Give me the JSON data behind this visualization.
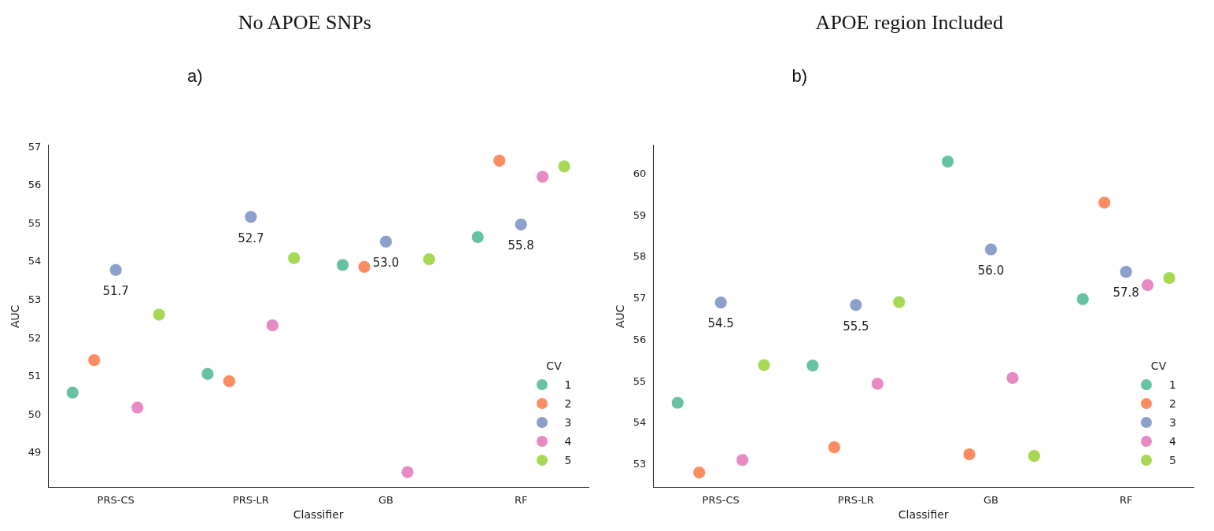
{
  "chart_data": [
    {
      "type": "scatter",
      "title": "No APOE SNPs",
      "subtitle": "a)",
      "xlabel": "Classifier",
      "ylabel": "AUC",
      "legend_title": "CV",
      "legend": "bottom right",
      "grid": false,
      "marker": "circle",
      "categories": [
        "PRS-CS",
        "PRS-LR",
        "GB",
        "RF"
      ],
      "ylim": [
        48.1,
        57.05
      ],
      "yticks": [
        49,
        50,
        51,
        52,
        53,
        54,
        55,
        56,
        57
      ],
      "series": [
        {
          "name": "1",
          "color": "#66c2a5",
          "values": [
            50.58,
            51.07,
            53.92,
            54.65
          ]
        },
        {
          "name": "2",
          "color": "#fc8d62",
          "values": [
            51.43,
            50.88,
            53.87,
            56.65
          ]
        },
        {
          "name": "3",
          "color": "#8da0cb",
          "values": [
            53.79,
            55.18,
            54.53,
            54.98
          ]
        },
        {
          "name": "4",
          "color": "#e78ac3",
          "values": [
            50.19,
            52.34,
            48.5,
            56.23
          ]
        },
        {
          "name": "5",
          "color": "#a6d854",
          "values": [
            52.62,
            54.1,
            54.07,
            56.5
          ]
        }
      ],
      "annotations": [
        "51.7",
        "52.7",
        "53.0",
        "55.8"
      ]
    },
    {
      "type": "scatter",
      "title": "APOE region Included",
      "subtitle": "b)",
      "xlabel": "Classifier",
      "ylabel": "AUC",
      "legend_title": "CV",
      "legend": "bottom right",
      "grid": false,
      "marker": "circle",
      "categories": [
        "PRS-CS",
        "PRS-LR",
        "GB",
        "RF"
      ],
      "ylim": [
        52.45,
        60.7
      ],
      "yticks": [
        53,
        54,
        55,
        56,
        57,
        58,
        59,
        60
      ],
      "series": [
        {
          "name": "1",
          "color": "#66c2a5",
          "values": [
            54.49,
            55.39,
            60.31,
            56.99
          ]
        },
        {
          "name": "2",
          "color": "#fc8d62",
          "values": [
            52.81,
            53.42,
            53.25,
            59.32
          ]
        },
        {
          "name": "3",
          "color": "#8da0cb",
          "values": [
            56.91,
            56.85,
            58.19,
            57.65
          ]
        },
        {
          "name": "4",
          "color": "#e78ac3",
          "values": [
            53.11,
            54.95,
            55.09,
            57.33
          ]
        },
        {
          "name": "5",
          "color": "#a6d854",
          "values": [
            55.4,
            56.92,
            53.21,
            57.5
          ]
        }
      ],
      "annotations": [
        "54.5",
        "55.5",
        "56.0",
        "57.8"
      ]
    }
  ]
}
